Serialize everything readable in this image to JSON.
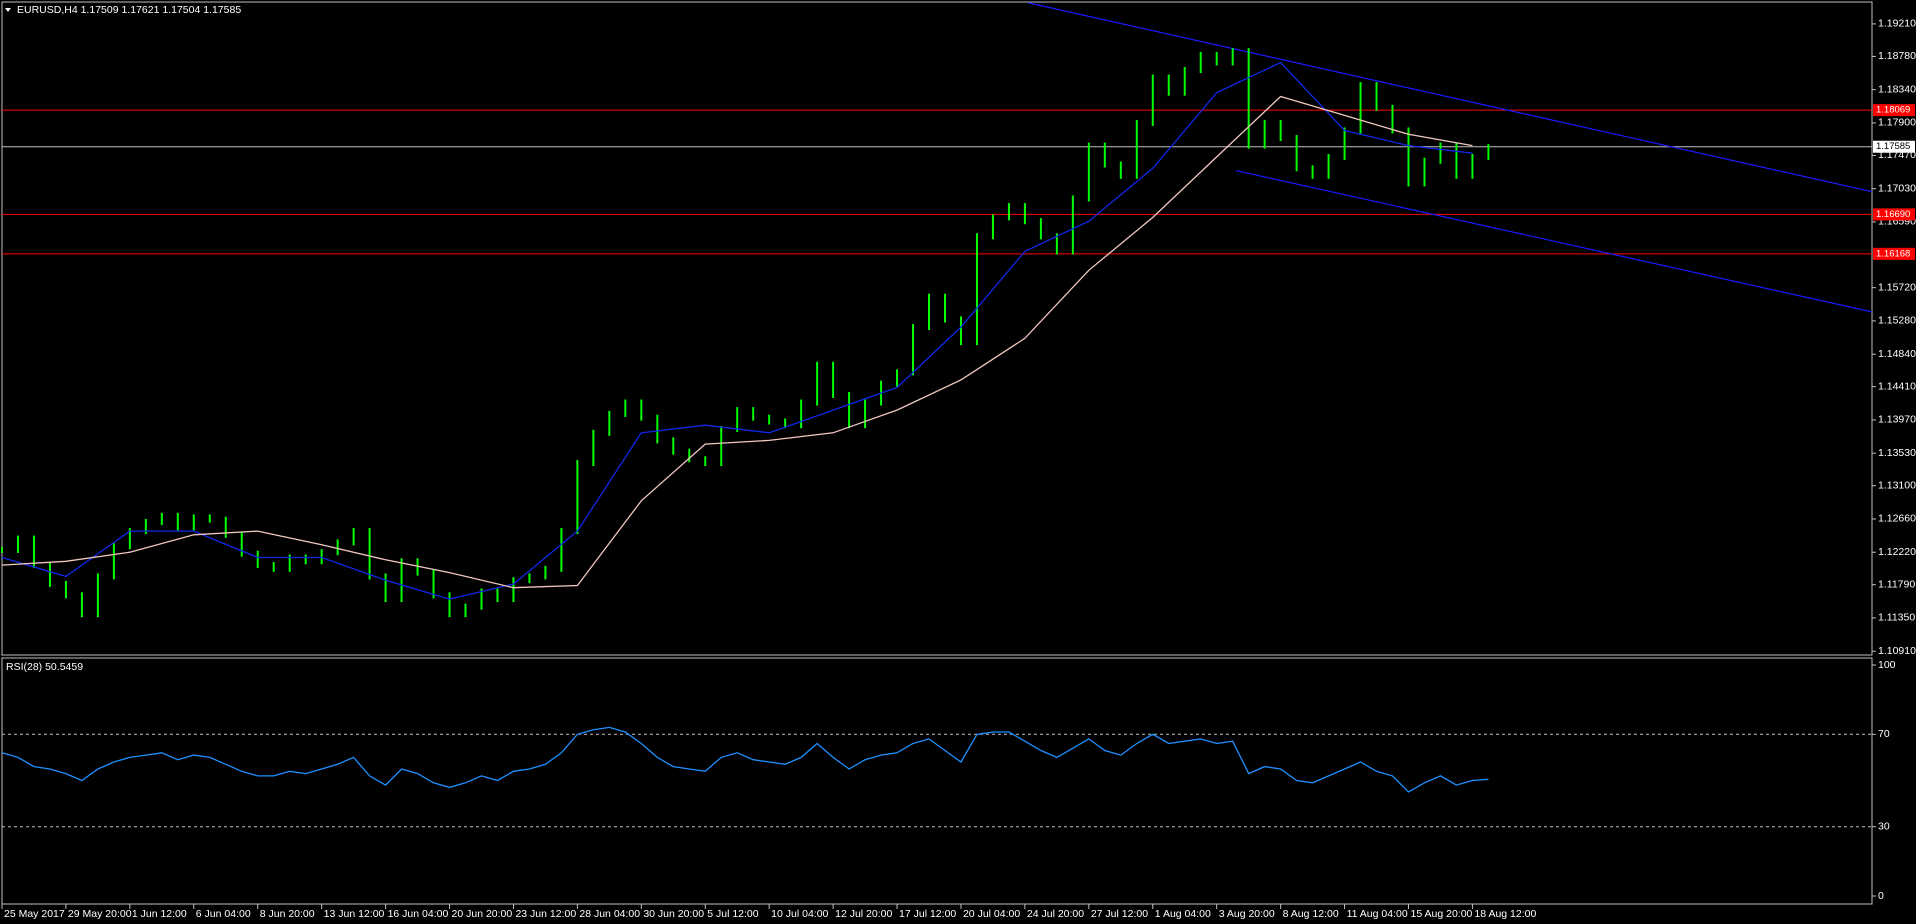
{
  "chart_data": [
    {
      "type": "line",
      "title": "EURUSD,H4  1.17509 1.17621 1.17504 1.17585",
      "xlim": [
        0,
        117
      ],
      "ylim": [
        1.1086,
        1.195
      ],
      "yticks": [
        {
          "value": 1.1921,
          "label": "1.19210"
        },
        {
          "value": 1.1878,
          "label": "1.18780"
        },
        {
          "value": 1.1834,
          "label": "1.18340"
        },
        {
          "value": 1.179,
          "label": "1.17900"
        },
        {
          "value": 1.1747,
          "label": "1.17470"
        },
        {
          "value": 1.1703,
          "label": "1.17030"
        },
        {
          "value": 1.1659,
          "label": "1.16590"
        },
        {
          "value": 1.1572,
          "label": "1.15720"
        },
        {
          "value": 1.1528,
          "label": "1.15280"
        },
        {
          "value": 1.1484,
          "label": "1.14840"
        },
        {
          "value": 1.1441,
          "label": "1.14410"
        },
        {
          "value": 1.1397,
          "label": "1.13970"
        },
        {
          "value": 1.1353,
          "label": "1.13530"
        },
        {
          "value": 1.131,
          "label": "1.13100"
        },
        {
          "value": 1.1266,
          "label": "1.12660"
        },
        {
          "value": 1.1222,
          "label": "1.12220"
        },
        {
          "value": 1.1179,
          "label": "1.11790"
        },
        {
          "value": 1.1135,
          "label": "1.11350"
        },
        {
          "value": 1.1091,
          "label": "1.10910"
        }
      ],
      "xticks": [
        {
          "value": 0,
          "label": "25 May 2017"
        },
        {
          "value": 4,
          "label": "29 May 20:00"
        },
        {
          "value": 8,
          "label": "1 Jun 12:00"
        },
        {
          "value": 12,
          "label": "6 Jun 04:00"
        },
        {
          "value": 16,
          "label": "8 Jun 20:00"
        },
        {
          "value": 20,
          "label": "13 Jun 12:00"
        },
        {
          "value": 24,
          "label": "16 Jun 04:00"
        },
        {
          "value": 28,
          "label": "20 Jun 20:00"
        },
        {
          "value": 32,
          "label": "23 Jun 12:00"
        },
        {
          "value": 36,
          "label": "28 Jun 04:00"
        },
        {
          "value": 40,
          "label": "30 Jun 20:00"
        },
        {
          "value": 44,
          "label": "5 Jul 12:00"
        },
        {
          "value": 48,
          "label": "10 Jul 04:00"
        },
        {
          "value": 52,
          "label": "12 Jul 20:00"
        },
        {
          "value": 56,
          "label": "17 Jul 12:00"
        },
        {
          "value": 60,
          "label": "20 Jul 04:00"
        },
        {
          "value": 64,
          "label": "24 Jul 20:00"
        },
        {
          "value": 68,
          "label": "27 Jul 12:00"
        },
        {
          "value": 72,
          "label": "1 Aug 04:00"
        },
        {
          "value": 76,
          "label": "3 Aug 20:00"
        },
        {
          "value": 80,
          "label": "8 Aug 12:00"
        },
        {
          "value": 84,
          "label": "11 Aug 04:00"
        },
        {
          "value": 88,
          "label": "15 Aug 20:00"
        },
        {
          "value": 92,
          "label": "18 Aug 12:00"
        }
      ],
      "series": [
        {
          "style": "bars",
          "color": "#00ff00",
          "values": [
            1.1225,
            1.124,
            1.1205,
            1.118,
            1.1165,
            1.114,
            1.119,
            1.123,
            1.125,
            1.1262,
            1.127,
            1.1255,
            1.1268,
            1.1265,
            1.1245,
            1.122,
            1.1205,
            1.12,
            1.1215,
            1.121,
            1.1222,
            1.1235,
            1.125,
            1.119,
            1.116,
            1.121,
            1.1195,
            1.1165,
            1.114,
            1.115,
            1.117,
            1.116,
            1.1185,
            1.119,
            1.12,
            1.125,
            1.134,
            1.138,
            1.1405,
            1.142,
            1.14,
            1.137,
            1.1355,
            1.1345,
            1.134,
            1.1385,
            1.141,
            1.14,
            1.1395,
            1.139,
            1.142,
            1.147,
            1.143,
            1.139,
            1.142,
            1.1445,
            1.146,
            1.152,
            1.156,
            1.153,
            1.15,
            1.164,
            1.1665,
            1.168,
            1.166,
            1.164,
            1.162,
            1.169,
            1.176,
            1.1735,
            1.172,
            1.179,
            1.185,
            1.183,
            1.186,
            1.188,
            1.187,
            1.1885,
            1.176,
            1.179,
            1.177,
            1.173,
            1.172,
            1.1745,
            1.178,
            1.184,
            1.181,
            1.178,
            1.171,
            1.174,
            1.176,
            1.172,
            1.1745,
            1.1758
          ]
        },
        {
          "color": "#1028e8",
          "x": [
            0,
            4,
            8,
            12,
            16,
            20,
            24,
            28,
            32,
            36,
            40,
            44,
            48,
            52,
            56,
            60,
            64,
            68,
            72,
            76,
            80,
            84,
            88,
            92
          ],
          "values": [
            1.1215,
            1.119,
            1.125,
            1.125,
            1.1215,
            1.1215,
            1.1185,
            1.116,
            1.118,
            1.125,
            1.138,
            1.139,
            1.138,
            1.141,
            1.144,
            1.152,
            1.162,
            1.166,
            1.173,
            1.183,
            1.187,
            1.178,
            1.176,
            1.175
          ]
        },
        {
          "color": "#f0c8c0",
          "x": [
            0,
            4,
            8,
            12,
            16,
            20,
            24,
            28,
            32,
            36,
            40,
            44,
            48,
            52,
            56,
            60,
            64,
            68,
            72,
            76,
            80,
            84,
            88,
            92
          ],
          "values": [
            1.1205,
            1.121,
            1.1222,
            1.1245,
            1.125,
            1.1232,
            1.1212,
            1.1195,
            1.1175,
            1.1178,
            1.129,
            1.1365,
            1.137,
            1.138,
            1.141,
            1.145,
            1.1505,
            1.1595,
            1.1665,
            1.1745,
            1.1825,
            1.18,
            1.1775,
            1.176
          ]
        }
      ],
      "trendlines": [
        {
          "color": "#1a1aff",
          "x": [
            64.2,
            117
          ],
          "values": [
            1.1949,
            1.1699
          ]
        },
        {
          "color": "#1a1aff",
          "x": [
            77.2,
            117
          ],
          "values": [
            1.1727,
            1.154
          ]
        }
      ],
      "hlines": [
        {
          "value": 1.18069,
          "color": "#ff0000"
        },
        {
          "value": {
            "value": 1.1669,
            "label": "1.16690"
          },
          "color": "#ff0000"
        },
        {
          "value": 1.16168,
          "color": "#ff0000"
        }
      ],
      "price_line": {
        "value": 1.17585,
        "color": "#c0c0c0"
      }
    },
    {
      "type": "line",
      "title": "RSI(28) 50.5459",
      "xlim": [
        0,
        117
      ],
      "ylim": [
        0,
        100
      ],
      "yticks": [
        0,
        30,
        70,
        100
      ],
      "levels": [
        30,
        70
      ],
      "series": [
        {
          "color": "#1e90ff",
          "values": [
            62,
            60,
            56,
            55,
            53,
            50,
            55,
            58,
            60,
            61,
            62,
            59,
            61,
            60,
            57,
            54,
            52,
            52,
            54,
            53,
            55,
            57,
            60,
            52,
            48,
            55,
            53,
            49,
            47,
            49,
            52,
            50,
            54,
            55,
            57,
            62,
            70,
            72,
            73,
            71,
            66,
            60,
            56,
            55,
            54,
            60,
            62,
            59,
            58,
            57,
            60,
            66,
            60,
            55,
            59,
            61,
            62,
            66,
            68,
            63,
            58,
            70,
            71,
            71,
            67,
            63,
            60,
            64,
            68,
            63,
            61,
            66,
            70,
            66,
            67,
            68,
            66,
            67,
            53,
            56,
            55,
            50,
            49,
            52,
            55,
            58,
            54,
            52,
            45,
            49,
            52,
            48,
            50,
            50.5
          ]
        }
      ]
    }
  ]
}
